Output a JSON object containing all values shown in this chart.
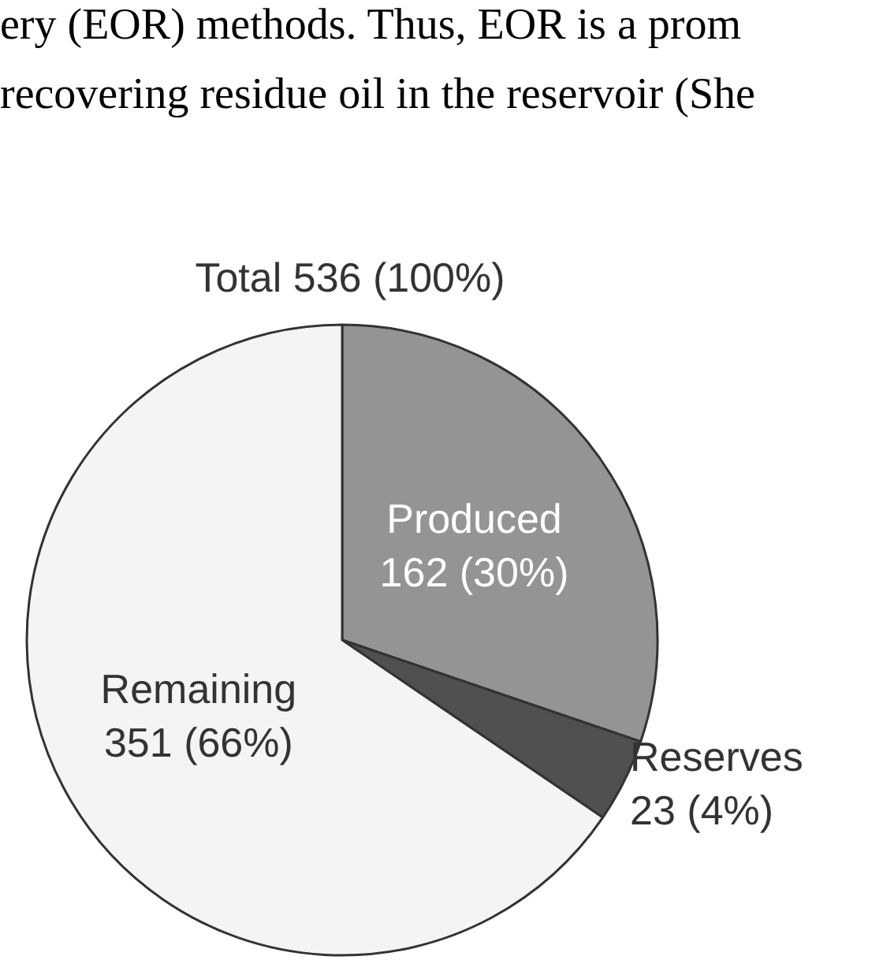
{
  "chart_data": {
    "type": "pie",
    "title": "Total 536 (100%)",
    "annotations": [
      "ery (EOR) methods. Thus, EOR is a prom",
      "recovering residue oil in the reservoir (She"
    ],
    "categories": [
      "Produced",
      "Reserves",
      "Remaining"
    ],
    "values": [
      162,
      23,
      351
    ],
    "value_labels": [
      "162 (30%)",
      "23 (4%)",
      "351 (66%)"
    ],
    "colors": [
      "#949494",
      "#505050",
      "#f4f4f4"
    ],
    "legend": false
  }
}
